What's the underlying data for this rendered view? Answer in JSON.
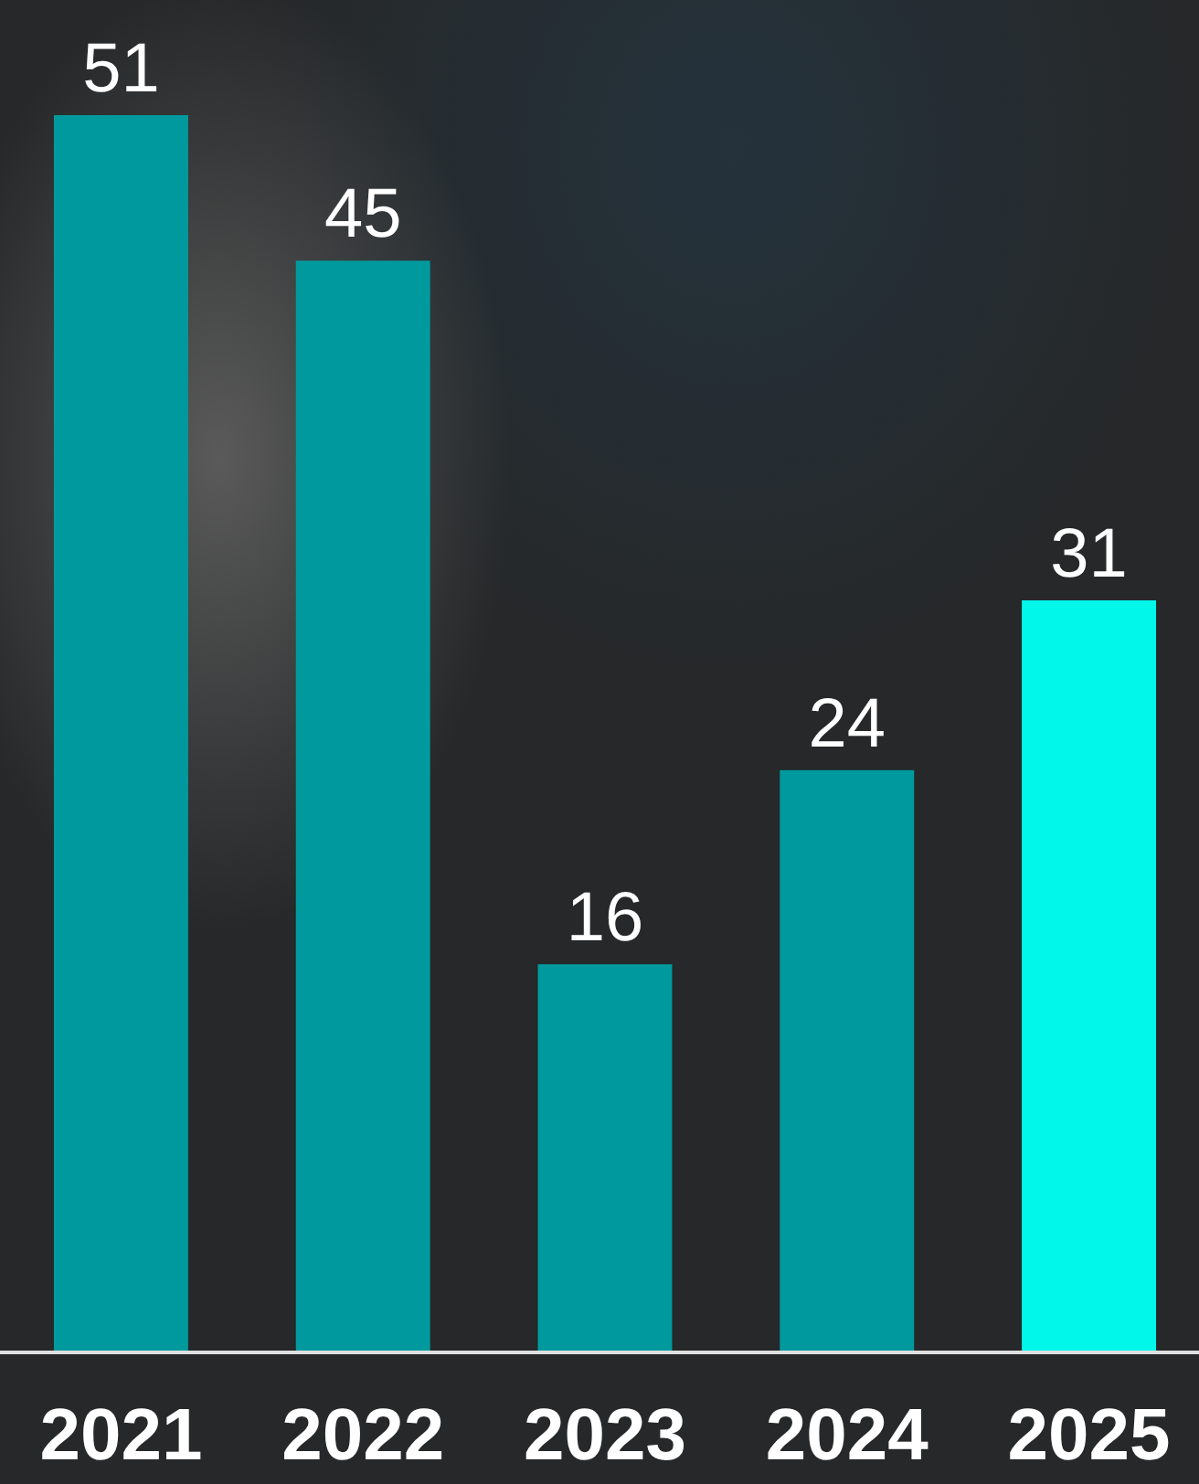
{
  "chart_data": {
    "type": "bar",
    "categories": [
      "2021",
      "2022",
      "2023",
      "2024",
      "2025"
    ],
    "values": [
      51,
      45,
      16,
      24,
      31
    ],
    "colors": [
      "#009a9e",
      "#009a9e",
      "#009a9e",
      "#009a9e",
      "#00f7ea"
    ],
    "data_labels": true
  }
}
